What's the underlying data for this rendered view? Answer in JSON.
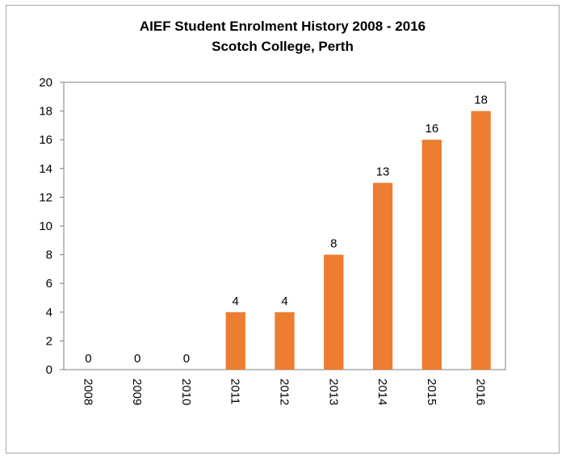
{
  "chart_data": {
    "type": "bar",
    "title": "AIEF Student Enrolment History 2008 - 2016",
    "subtitle": "Scotch College, Perth",
    "categories": [
      "2008",
      "2009",
      "2010",
      "2011",
      "2012",
      "2013",
      "2014",
      "2015",
      "2016"
    ],
    "values": [
      0,
      0,
      0,
      4,
      4,
      8,
      13,
      16,
      18
    ],
    "ylim": [
      0,
      20
    ],
    "yticks": [
      0,
      2,
      4,
      6,
      8,
      10,
      12,
      14,
      16,
      18,
      20
    ],
    "xlabel": "",
    "ylabel": "",
    "grid": false,
    "legend": "none",
    "data_labels": true,
    "category_label_rotation": "vertical",
    "bar_color": "#ed7d31"
  }
}
